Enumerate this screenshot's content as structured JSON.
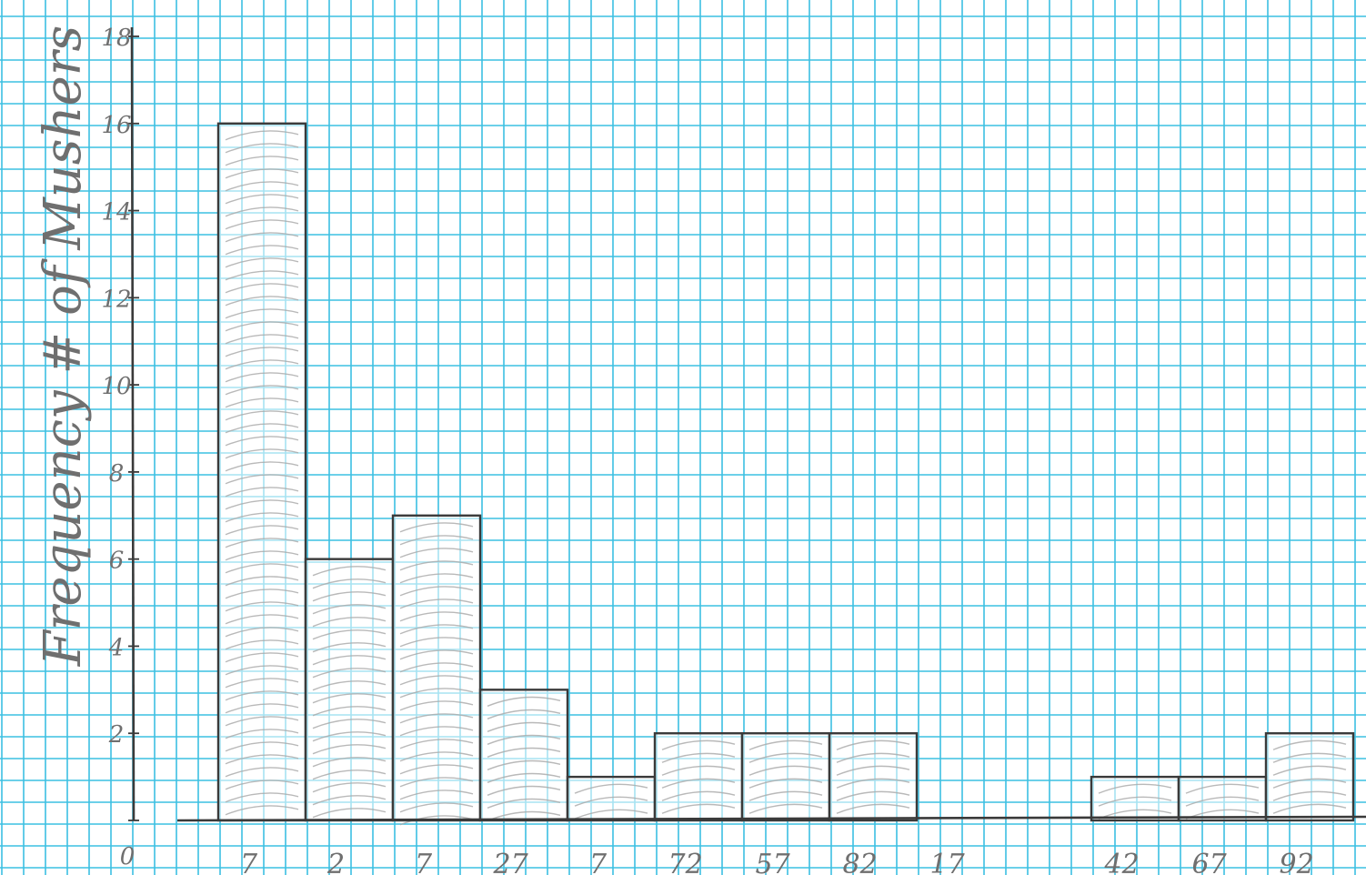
{
  "chart_data": {
    "type": "bar",
    "title": "",
    "xlabel": "",
    "ylabel": "Frequency # of Mushers",
    "ylim": [
      0,
      18
    ],
    "yticks": [
      {
        "value": 0,
        "label": "0"
      },
      {
        "value": 2,
        "label": "2"
      },
      {
        "value": 4,
        "label": "4"
      },
      {
        "value": 6,
        "label": "6"
      },
      {
        "value": 8,
        "label": "8"
      },
      {
        "value": 10,
        "label": "10"
      },
      {
        "value": 12,
        "label": "12"
      },
      {
        "value": 14,
        "label": "14"
      },
      {
        "value": 16,
        "label": "16"
      },
      {
        "value": 18,
        "label": "18"
      }
    ],
    "categories": [
      "7",
      "2",
      "7",
      "27",
      "7",
      "72",
      "57",
      "82",
      "17",
      "",
      "42",
      "67",
      "92"
    ],
    "values": [
      16,
      6,
      7,
      3,
      1,
      2,
      2,
      2,
      0,
      0,
      1,
      1,
      2
    ],
    "grid": true,
    "colors": {
      "grid": "#3cc0e2",
      "pencil": "#3a3a3a",
      "shading": "#a8a8a8",
      "paper": "#ffffff"
    }
  }
}
